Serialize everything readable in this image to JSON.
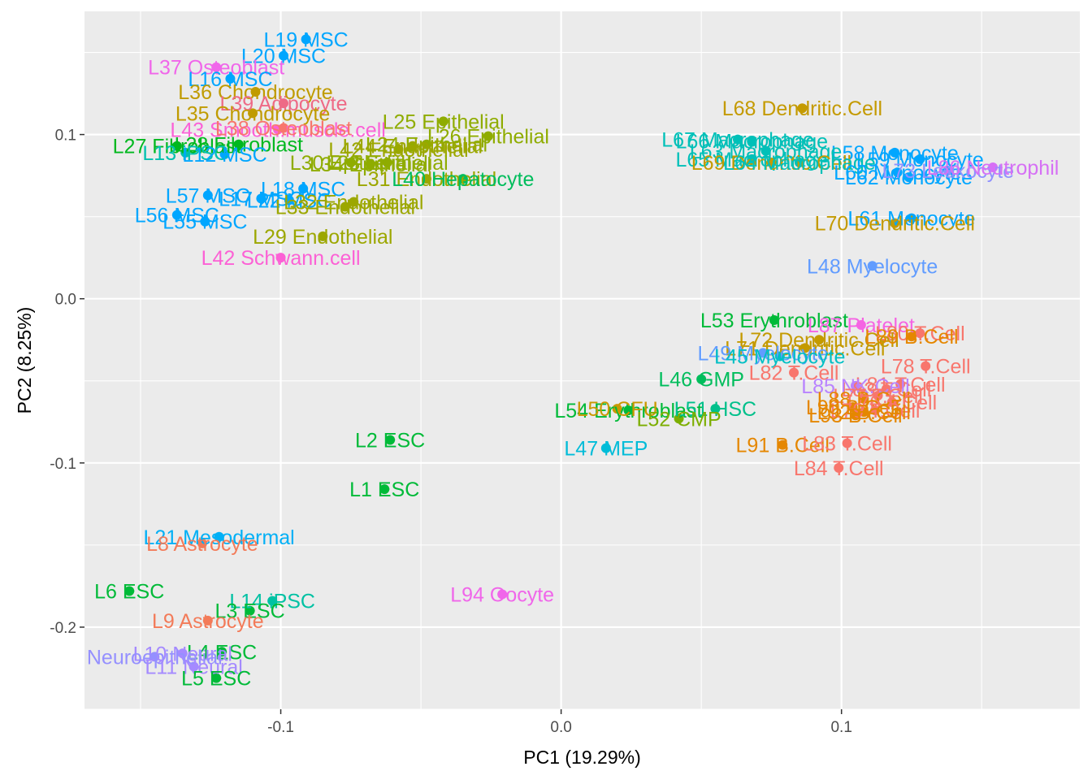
{
  "chart_data": {
    "type": "scatter",
    "xlabel": "PC1 (19.29%)",
    "ylabel": "PC2 (8.25%)",
    "xlim": [
      -0.17,
      0.185
    ],
    "ylim": [
      -0.25,
      0.175
    ],
    "x_ticks": [
      -0.1,
      0.0,
      0.1
    ],
    "y_ticks": [
      -0.2,
      -0.1,
      0.0,
      0.1
    ],
    "x_tick_labels": [
      "-0.1",
      "0.0",
      "0.1"
    ],
    "y_tick_labels": [
      "-0.2",
      "-0.1",
      "0.0",
      "0.1"
    ],
    "grid": true,
    "panel_background": "#ebebeb",
    "points": [
      {
        "label": "L19 MSC",
        "x": -0.091,
        "y": 0.158,
        "color": "#00a6ff"
      },
      {
        "label": "L20 MSC",
        "x": -0.099,
        "y": 0.148,
        "color": "#00a6ff"
      },
      {
        "label": "L37 Osteoblast",
        "x": -0.123,
        "y": 0.141,
        "color": "#f066ea"
      },
      {
        "label": "L16 MSC",
        "x": -0.118,
        "y": 0.134,
        "color": "#00a6ff"
      },
      {
        "label": "L36 Chondrocyte",
        "x": -0.109,
        "y": 0.126,
        "color": "#c09b00"
      },
      {
        "label": "L39 Adipocyte",
        "x": -0.099,
        "y": 0.119,
        "color": "#ee6a86"
      },
      {
        "label": "L35 Chondrocyte",
        "x": -0.11,
        "y": 0.113,
        "color": "#c09b00"
      },
      {
        "label": "L25 Epithelial",
        "x": -0.042,
        "y": 0.108,
        "color": "#8fac00"
      },
      {
        "label": "L43 Smooth.muscle.cell",
        "x": -0.101,
        "y": 0.103,
        "color": "#fb61d7"
      },
      {
        "label": "L38 Osteoblast",
        "x": -0.099,
        "y": 0.104,
        "color": "#f8766d"
      },
      {
        "label": "L26 Epithelial",
        "x": -0.026,
        "y": 0.099,
        "color": "#8fac00"
      },
      {
        "label": "L24 Epithelial",
        "x": -0.048,
        "y": 0.094,
        "color": "#8fac00"
      },
      {
        "label": "L27 Fibroblast",
        "x": -0.137,
        "y": 0.093,
        "color": "#00b81f"
      },
      {
        "label": "L28 Fibroblast",
        "x": -0.115,
        "y": 0.094,
        "color": "#00b81f"
      },
      {
        "label": "L42 Endothelial",
        "x": -0.058,
        "y": 0.091,
        "color": "#9ca700"
      },
      {
        "label": "L44 Endothelial",
        "x": -0.053,
        "y": 0.093,
        "color": "#9ca700"
      },
      {
        "label": "L13 iPSC",
        "x": -0.134,
        "y": 0.089,
        "color": "#00c0af"
      },
      {
        "label": "L12 MSC",
        "x": -0.12,
        "y": 0.088,
        "color": "#00a6ff"
      },
      {
        "label": "L30 Epithelial",
        "x": -0.075,
        "y": 0.083,
        "color": "#8fac00"
      },
      {
        "label": "L23 Epithelial",
        "x": -0.062,
        "y": 0.083,
        "color": "#8fac00"
      },
      {
        "label": "L34 Epithelial",
        "x": -0.068,
        "y": 0.082,
        "color": "#8fac00"
      },
      {
        "label": "L31 Endothelial",
        "x": -0.048,
        "y": 0.073,
        "color": "#9ca700"
      },
      {
        "label": "L40 Hepatocyte",
        "x": -0.035,
        "y": 0.073,
        "color": "#00bd5c"
      },
      {
        "label": "L57 MSC",
        "x": -0.126,
        "y": 0.063,
        "color": "#00a6ff"
      },
      {
        "label": "L18 MSC",
        "x": -0.092,
        "y": 0.067,
        "color": "#00a6ff"
      },
      {
        "label": "L17 MSC",
        "x": -0.107,
        "y": 0.061,
        "color": "#00a6ff"
      },
      {
        "label": "L22 MSC",
        "x": -0.097,
        "y": 0.06,
        "color": "#00a6ff"
      },
      {
        "label": "L32 Endothelial",
        "x": -0.074,
        "y": 0.059,
        "color": "#9ca700"
      },
      {
        "label": "L33 Endothelial",
        "x": -0.077,
        "y": 0.056,
        "color": "#9ca700"
      },
      {
        "label": "L56 MSC",
        "x": -0.137,
        "y": 0.051,
        "color": "#00a6ff"
      },
      {
        "label": "L55 MSC",
        "x": -0.127,
        "y": 0.047,
        "color": "#00a6ff"
      },
      {
        "label": "L29 Endothelial",
        "x": -0.085,
        "y": 0.038,
        "color": "#9ca700"
      },
      {
        "label": "L42 Schwann.cell",
        "x": -0.1,
        "y": 0.025,
        "color": "#fc61d5"
      },
      {
        "label": "L68 Dendritic.Cell",
        "x": 0.086,
        "y": 0.116,
        "color": "#c49a00"
      },
      {
        "label": "L67 Macrophage",
        "x": 0.063,
        "y": 0.097,
        "color": "#00c0b8"
      },
      {
        "label": "L66 Macrophage",
        "x": 0.068,
        "y": 0.096,
        "color": "#00c0b8"
      },
      {
        "label": "L58 Monocyte",
        "x": 0.119,
        "y": 0.089,
        "color": "#00a6ff"
      },
      {
        "label": "L63 Macrophage",
        "x": 0.073,
        "y": 0.09,
        "color": "#00c0b8"
      },
      {
        "label": "L65 Macrophage",
        "x": 0.068,
        "y": 0.085,
        "color": "#00c0b8"
      },
      {
        "label": "L59 Monocyte",
        "x": 0.128,
        "y": 0.085,
        "color": "#00a6ff"
      },
      {
        "label": "L69 Dendritic.Cell",
        "x": 0.075,
        "y": 0.083,
        "color": "#c49a00"
      },
      {
        "label": "L64 Macrophage",
        "x": 0.085,
        "y": 0.083,
        "color": "#00c0b8"
      },
      {
        "label": "L60 Monocyte",
        "x": 0.12,
        "y": 0.077,
        "color": "#00a6ff"
      },
      {
        "label": "L62 Monocyte",
        "x": 0.124,
        "y": 0.074,
        "color": "#00a6ff"
      },
      {
        "label": "L73 Leukocyte",
        "x": 0.138,
        "y": 0.078,
        "color": "#8f91ff"
      },
      {
        "label": "L86 Neutrophil",
        "x": 0.154,
        "y": 0.08,
        "color": "#d670f5"
      },
      {
        "label": "L61 Monocyte",
        "x": 0.125,
        "y": 0.049,
        "color": "#00a6ff"
      },
      {
        "label": "L70 Dendritic.Cell",
        "x": 0.119,
        "y": 0.046,
        "color": "#c49a00"
      },
      {
        "label": "L48 Myelocyte",
        "x": 0.111,
        "y": 0.02,
        "color": "#619cff"
      },
      {
        "label": "L53 Erythroblast",
        "x": 0.076,
        "y": -0.013,
        "color": "#00ba38"
      },
      {
        "label": "L87 Platelet",
        "x": 0.107,
        "y": -0.016,
        "color": "#f564e3"
      },
      {
        "label": "L80 T.Cell",
        "x": 0.128,
        "y": -0.021,
        "color": "#f8766d"
      },
      {
        "label": "L72 Dendritic.Cell",
        "x": 0.092,
        "y": -0.025,
        "color": "#c49a00"
      },
      {
        "label": "L89 B.Cell",
        "x": 0.125,
        "y": -0.023,
        "color": "#e58700"
      },
      {
        "label": "L71 Dendritic.Cell",
        "x": 0.087,
        "y": -0.03,
        "color": "#c49a00"
      },
      {
        "label": "L49 Myelocyte",
        "x": 0.072,
        "y": -0.033,
        "color": "#619cff"
      },
      {
        "label": "L45 Myelocyte",
        "x": 0.078,
        "y": -0.035,
        "color": "#00bfc4"
      },
      {
        "label": "L78 T.Cell",
        "x": 0.13,
        "y": -0.041,
        "color": "#f8766d"
      },
      {
        "label": "L82 T.Cell",
        "x": 0.083,
        "y": -0.045,
        "color": "#f8766d"
      },
      {
        "label": "L46 GMP",
        "x": 0.05,
        "y": -0.049,
        "color": "#00bd5c"
      },
      {
        "label": "L81 T.Cell",
        "x": 0.121,
        "y": -0.052,
        "color": "#f8766d"
      },
      {
        "label": "L83 T.Cell",
        "x": 0.116,
        "y": -0.055,
        "color": "#f8766d"
      },
      {
        "label": "L85 NK.Cell",
        "x": 0.105,
        "y": -0.053,
        "color": "#b983ff"
      },
      {
        "label": "L77 T.Cell",
        "x": 0.113,
        "y": -0.059,
        "color": "#f8766d"
      },
      {
        "label": "L88 B.Cell",
        "x": 0.108,
        "y": -0.061,
        "color": "#e58700"
      },
      {
        "label": "L76 T.Cell",
        "x": 0.118,
        "y": -0.063,
        "color": "#f8766d"
      },
      {
        "label": "L90 B.Cell",
        "x": 0.104,
        "y": -0.066,
        "color": "#e58700"
      },
      {
        "label": "L79 T.Cell",
        "x": 0.112,
        "y": -0.068,
        "color": "#f8766d"
      },
      {
        "label": "L92 B.Cell",
        "x": 0.108,
        "y": -0.069,
        "color": "#e58700"
      },
      {
        "label": "L54 Erythroblast",
        "x": 0.024,
        "y": -0.068,
        "color": "#00ba38"
      },
      {
        "label": "L50 CFU",
        "x": 0.02,
        "y": -0.067,
        "color": "#c99800"
      },
      {
        "label": "L51 HSC",
        "x": 0.055,
        "y": -0.067,
        "color": "#00c08b"
      },
      {
        "label": "L93 B.Cell",
        "x": 0.105,
        "y": -0.071,
        "color": "#e58700"
      },
      {
        "label": "L52 CMP",
        "x": 0.042,
        "y": -0.073,
        "color": "#7cae00"
      },
      {
        "label": "L47 MEP",
        "x": 0.016,
        "y": -0.091,
        "color": "#00bcd8"
      },
      {
        "label": "L91 B.Cell",
        "x": 0.079,
        "y": -0.089,
        "color": "#e58700"
      },
      {
        "label": "L83 T.Cell",
        "x": 0.102,
        "y": -0.088,
        "color": "#f8766d"
      },
      {
        "label": "L84 T.Cell",
        "x": 0.099,
        "y": -0.103,
        "color": "#f8766d"
      },
      {
        "label": "L2 ESC",
        "x": -0.061,
        "y": -0.086,
        "color": "#00ba38"
      },
      {
        "label": "L1 ESC",
        "x": -0.063,
        "y": -0.116,
        "color": "#00ba38"
      },
      {
        "label": "L21 Mesodermal",
        "x": -0.122,
        "y": -0.145,
        "color": "#00b0f6"
      },
      {
        "label": "L8 Astrocyte",
        "x": -0.128,
        "y": -0.149,
        "color": "#f37b59"
      },
      {
        "label": "L94 Oocyte",
        "x": -0.021,
        "y": -0.18,
        "color": "#f066ea"
      },
      {
        "label": "L6 ESC",
        "x": -0.154,
        "y": -0.178,
        "color": "#00ba38"
      },
      {
        "label": "L14 iPSC",
        "x": -0.103,
        "y": -0.184,
        "color": "#00c1a3"
      },
      {
        "label": "L3 ESC",
        "x": -0.111,
        "y": -0.19,
        "color": "#00ba38"
      },
      {
        "label": "L9 Astrocyte",
        "x": -0.126,
        "y": -0.196,
        "color": "#f37b59"
      },
      {
        "label": "L4 ESC",
        "x": -0.121,
        "y": -0.215,
        "color": "#00ba38"
      },
      {
        "label": "L10 Neural",
        "x": -0.135,
        "y": -0.216,
        "color": "#a58aff"
      },
      {
        "label": "Neuroepithelial",
        "x": -0.145,
        "y": -0.218,
        "color": "#9590ff"
      },
      {
        "label": "L11 Neural",
        "x": -0.131,
        "y": -0.224,
        "color": "#a58aff"
      },
      {
        "label": "L5 ESC",
        "x": -0.123,
        "y": -0.231,
        "color": "#00ba38"
      }
    ]
  }
}
